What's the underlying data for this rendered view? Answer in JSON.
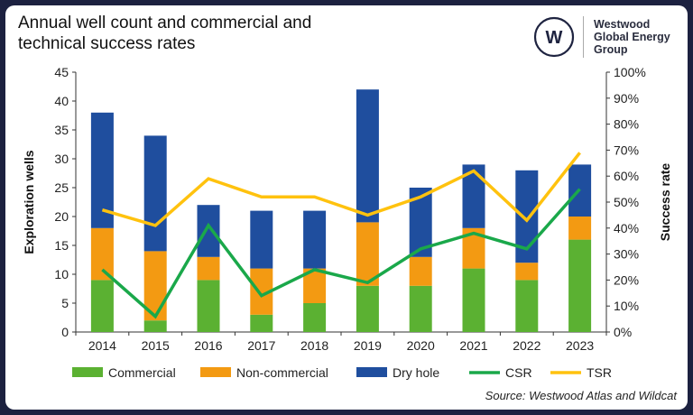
{
  "title": "Annual well count and commercial and technical success rates",
  "logo": {
    "line1": "Westwood",
    "line2": "Global Energy",
    "line3": "Group",
    "mark": "W"
  },
  "source": "Source: Westwood Atlas and Wildcat",
  "chart_data": {
    "type": "bar",
    "stacked": true,
    "categories": [
      "2014",
      "2015",
      "2016",
      "2017",
      "2018",
      "2019",
      "2020",
      "2021",
      "2022",
      "2023"
    ],
    "ylabel": "Exploration wells",
    "y2label": "Success rate",
    "ylim": [
      0,
      45
    ],
    "yticks": [
      0,
      5,
      10,
      15,
      20,
      25,
      30,
      35,
      40,
      45
    ],
    "y2lim": [
      0,
      100
    ],
    "y2ticks": [
      "0%",
      "10%",
      "20%",
      "30%",
      "40%",
      "50%",
      "60%",
      "70%",
      "80%",
      "90%",
      "100%"
    ],
    "grid": false,
    "legend_position": "bottom",
    "series": [
      {
        "name": "Commercial",
        "type": "bar",
        "color": "#5bb132",
        "values": [
          9,
          2,
          9,
          3,
          5,
          8,
          8,
          11,
          9,
          16
        ]
      },
      {
        "name": "Non-commercial",
        "type": "bar",
        "color": "#f39a12",
        "values": [
          9,
          12,
          4,
          8,
          6,
          11,
          5,
          7,
          3,
          4
        ]
      },
      {
        "name": "Dry hole",
        "type": "bar",
        "color": "#1f4e9e",
        "values": [
          20,
          20,
          9,
          10,
          10,
          23,
          12,
          11,
          16,
          9
        ]
      },
      {
        "name": "CSR",
        "type": "line",
        "axis": "right",
        "color": "#1aa84a",
        "values": [
          24,
          6,
          41,
          14,
          24,
          19,
          32,
          38,
          32,
          55
        ]
      },
      {
        "name": "TSR",
        "type": "line",
        "axis": "right",
        "color": "#ffc20e",
        "values": [
          47,
          41,
          59,
          52,
          52,
          45,
          52,
          62,
          43,
          69
        ]
      }
    ]
  }
}
